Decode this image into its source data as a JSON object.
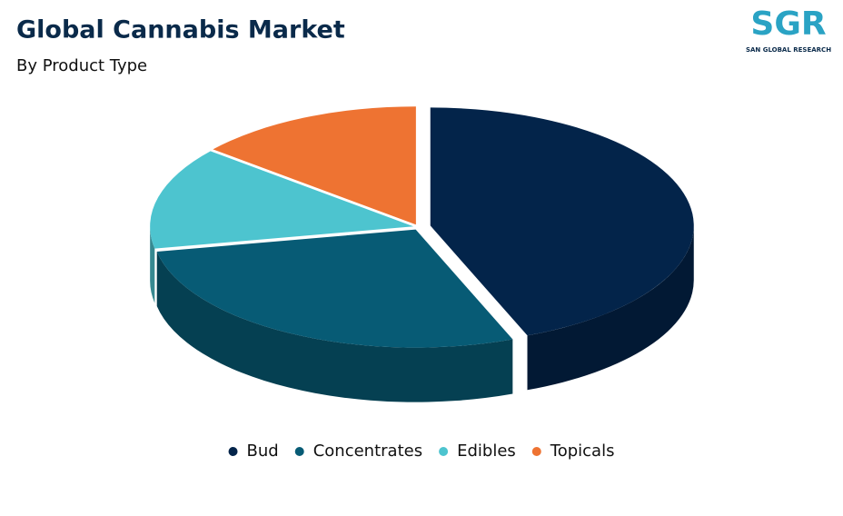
{
  "logo": {
    "text": "SGR",
    "caption": "SAN GLOBAL RESEARCH"
  },
  "chart_data": {
    "type": "pie",
    "title": "Global Cannabis Market",
    "subtitle": "By Product Type",
    "categories": [
      "Bud",
      "Concentrates",
      "Edibles",
      "Topicals"
    ],
    "values": [
      44,
      28,
      14,
      14
    ],
    "colors": [
      "#03244a",
      "#075b75",
      "#4dc4cf",
      "#ee7332"
    ]
  }
}
